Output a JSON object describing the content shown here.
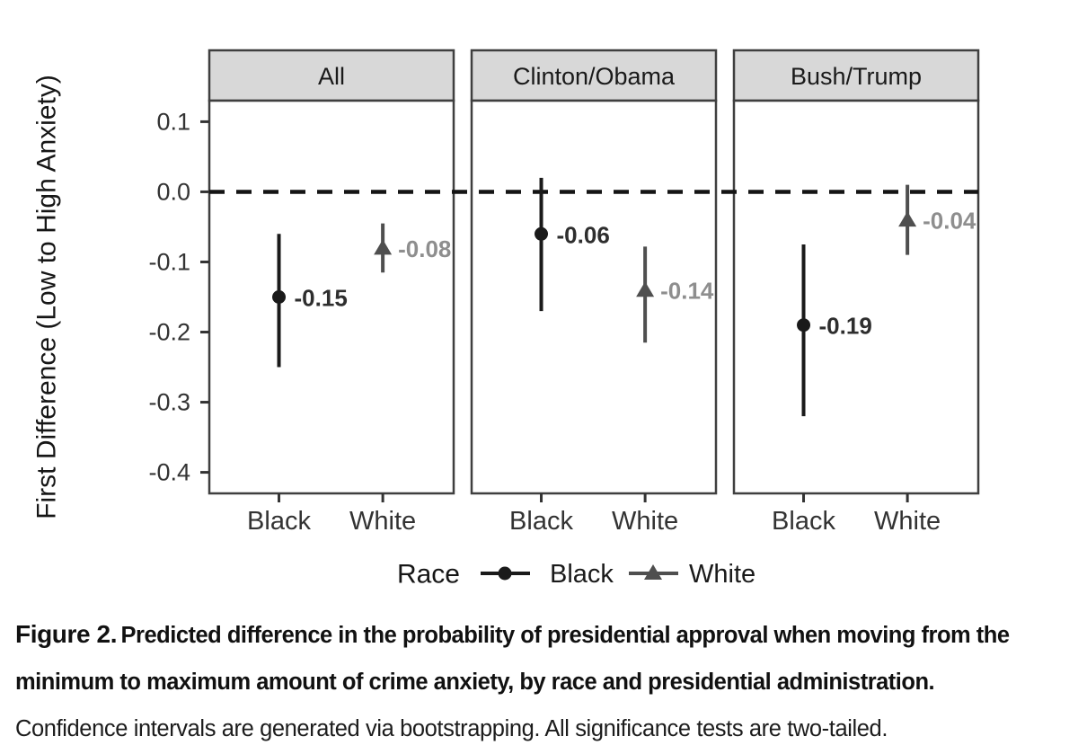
{
  "chart_data": {
    "type": "pointrange",
    "title": "",
    "ylabel": "First Difference (Low to High Anxiety)",
    "xlabel": "",
    "ylim": [
      -0.43,
      0.13
    ],
    "ytick_values": [
      0.1,
      0.0,
      -0.1,
      -0.2,
      -0.3,
      -0.4
    ],
    "ytick_labels": [
      "0.1",
      "0.0",
      "-0.1",
      "-0.2",
      "-0.3",
      "-0.4"
    ],
    "reference_line_y": 0.0,
    "categories": [
      "Black",
      "White"
    ],
    "grid": "off",
    "panels": [
      {
        "title": "All",
        "points": [
          {
            "race": "Black",
            "estimate": -0.15,
            "ci_low": -0.25,
            "ci_high": -0.06,
            "label": "-0.15"
          },
          {
            "race": "White",
            "estimate": -0.08,
            "ci_low": -0.115,
            "ci_high": -0.045,
            "label": "-0.08"
          }
        ]
      },
      {
        "title": "Clinton/Obama",
        "points": [
          {
            "race": "Black",
            "estimate": -0.06,
            "ci_low": -0.17,
            "ci_high": 0.02,
            "label": "-0.06"
          },
          {
            "race": "White",
            "estimate": -0.14,
            "ci_low": -0.215,
            "ci_high": -0.078,
            "label": "-0.14"
          }
        ]
      },
      {
        "title": "Bush/Trump",
        "points": [
          {
            "race": "Black",
            "estimate": -0.19,
            "ci_low": -0.32,
            "ci_high": -0.075,
            "label": "-0.19"
          },
          {
            "race": "White",
            "estimate": -0.04,
            "ci_low": -0.09,
            "ci_high": 0.01,
            "label": "-0.04"
          }
        ]
      }
    ],
    "legend": {
      "title": "Race",
      "position": "bottom",
      "entries": [
        {
          "label": "Black",
          "marker": "circle"
        },
        {
          "label": "White",
          "marker": "triangle"
        }
      ]
    },
    "colors": {
      "black_series": "#1a1a1a",
      "white_series": "#4f4f4f",
      "black_point_label": "#2e2e2e",
      "white_point_label": "#8e8e8e",
      "panel_header_fill": "#d8d8d8",
      "panel_border": "#3f3f3f",
      "axis_text": "#333333",
      "reference_line": "#141414",
      "background": "#ffffff"
    }
  },
  "caption": {
    "label": "Figure 2.",
    "bold_text": "Predicted difference in the probability of presidential approval when moving from the minimum to maximum amount of crime anxiety, by race and presidential administration.",
    "note": "Confidence intervals are generated via bootstrapping. All significance tests are two-tailed."
  }
}
